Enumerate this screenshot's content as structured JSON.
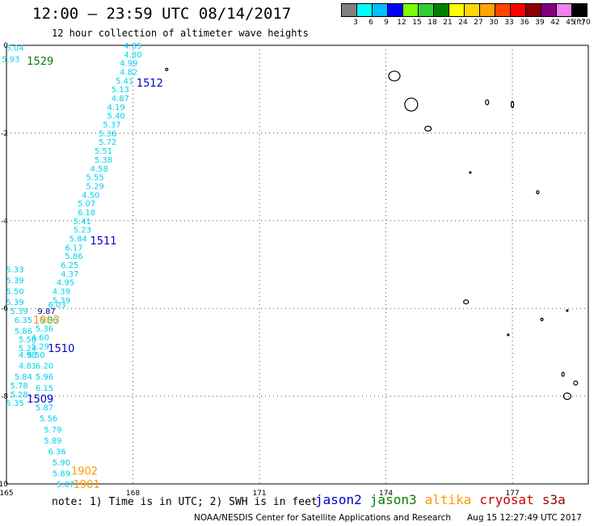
{
  "header": {
    "title": "12:00 – 23:59 UTC 08/14/2017",
    "subtitle": "12 hour collection of altimeter wave heights"
  },
  "colorbar": {
    "labels": [
      "3",
      "6",
      "9",
      "12",
      "15",
      "18",
      "21",
      "24",
      "27",
      "30",
      "33",
      "36",
      "39",
      "42",
      "45",
      "70"
    ],
    "unit": "(ft)",
    "colors": [
      "#808080",
      "#00ffff",
      "#00bfff",
      "#0000ff",
      "#7cfc00",
      "#32cd32",
      "#008000",
      "#ffff00",
      "#ffd700",
      "#ffa500",
      "#ff4500",
      "#ff0000",
      "#8b0000",
      "#800080",
      "#ee82ee",
      "#000000"
    ]
  },
  "chart_data": {
    "type": "scatter",
    "x_ticks": [
      "165",
      "168",
      "171",
      "174",
      "177"
    ],
    "y_ticks": [
      "0",
      "-2",
      "-4",
      "-6",
      "-8",
      "-10"
    ],
    "xlim": [
      165,
      178.8
    ],
    "ylim": [
      -10,
      0
    ],
    "grid": true,
    "pass_labels": [
      {
        "text": "1529",
        "lon": 165.8,
        "lat": -0.35,
        "color": "#008000"
      },
      {
        "text": "1512",
        "lon": 168.4,
        "lat": -0.85,
        "color": "#0000cc"
      },
      {
        "text": "1511",
        "lon": 167.3,
        "lat": -4.45,
        "color": "#0000cc"
      },
      {
        "text": "1903",
        "lon": 165.95,
        "lat": -6.25,
        "color": "#ff9900"
      },
      {
        "text": "1510",
        "lon": 166.3,
        "lat": -6.9,
        "color": "#0000cc"
      },
      {
        "text": "1509",
        "lon": 165.8,
        "lat": -8.05,
        "color": "#0000cc"
      },
      {
        "text": "1902",
        "lon": 166.85,
        "lat": -9.7,
        "color": "#ff9900"
      },
      {
        "text": "1901",
        "lon": 166.9,
        "lat": -10.0,
        "color": "#ff9900"
      }
    ],
    "series": [
      {
        "color": "#00d0f0",
        "points": [
          {
            "lon": 165.2,
            "lat": -0.05,
            "v": "5.04"
          },
          {
            "lon": 165.1,
            "lat": -0.3,
            "v": "5.93"
          },
          {
            "lon": 168.0,
            "lat": 0.0,
            "v": "4.85"
          },
          {
            "lon": 168.0,
            "lat": -0.2,
            "v": "4.80"
          },
          {
            "lon": 167.9,
            "lat": -0.4,
            "v": "4.99"
          },
          {
            "lon": 167.9,
            "lat": -0.6,
            "v": "4.82"
          },
          {
            "lon": 167.8,
            "lat": -0.8,
            "v": "5.41"
          },
          {
            "lon": 167.7,
            "lat": -1.0,
            "v": "5.13"
          },
          {
            "lon": 167.7,
            "lat": -1.2,
            "v": "4.87"
          },
          {
            "lon": 167.6,
            "lat": -1.4,
            "v": "4.19"
          },
          {
            "lon": 167.6,
            "lat": -1.6,
            "v": "5.40"
          },
          {
            "lon": 167.5,
            "lat": -1.8,
            "v": "5.37"
          },
          {
            "lon": 167.4,
            "lat": -2.0,
            "v": "5.36"
          },
          {
            "lon": 167.4,
            "lat": -2.2,
            "v": "5.72"
          },
          {
            "lon": 167.3,
            "lat": -2.4,
            "v": "5.51"
          },
          {
            "lon": 167.3,
            "lat": -2.6,
            "v": "5.38"
          },
          {
            "lon": 167.2,
            "lat": -2.8,
            "v": "4.58"
          },
          {
            "lon": 167.1,
            "lat": -3.0,
            "v": "5.55"
          },
          {
            "lon": 167.1,
            "lat": -3.2,
            "v": "5.29"
          },
          {
            "lon": 167.0,
            "lat": -3.4,
            "v": "4.50"
          },
          {
            "lon": 166.9,
            "lat": -3.6,
            "v": "5.07"
          },
          {
            "lon": 166.9,
            "lat": -3.8,
            "v": "6.18"
          },
          {
            "lon": 166.8,
            "lat": -4.0,
            "v": "5.41"
          },
          {
            "lon": 166.8,
            "lat": -4.2,
            "v": "5.23"
          },
          {
            "lon": 166.7,
            "lat": -4.4,
            "v": "5.84"
          },
          {
            "lon": 166.6,
            "lat": -4.6,
            "v": "6.17"
          },
          {
            "lon": 166.6,
            "lat": -4.8,
            "v": "5.86"
          },
          {
            "lon": 166.5,
            "lat": -5.0,
            "v": "6.25"
          },
          {
            "lon": 166.5,
            "lat": -5.2,
            "v": "4.37"
          },
          {
            "lon": 166.4,
            "lat": -5.4,
            "v": "4.95"
          },
          {
            "lon": 166.3,
            "lat": -5.6,
            "v": "4.39"
          },
          {
            "lon": 166.3,
            "lat": -5.8,
            "v": "5.39"
          },
          {
            "lon": 166.2,
            "lat": -5.9,
            "v": "6.03"
          },
          {
            "lon": 165.2,
            "lat": -5.1,
            "v": "5.33"
          },
          {
            "lon": 165.2,
            "lat": -5.35,
            "v": "5.39"
          },
          {
            "lon": 165.2,
            "lat": -5.6,
            "v": "5.50"
          },
          {
            "lon": 165.2,
            "lat": -5.85,
            "v": "5.39"
          },
          {
            "lon": 165.3,
            "lat": -6.05,
            "v": "5.39"
          },
          {
            "lon": 165.4,
            "lat": -6.25,
            "v": "6.35"
          },
          {
            "lon": 166.0,
            "lat": -6.25,
            "v": "6.86"
          },
          {
            "lon": 165.4,
            "lat": -6.5,
            "v": "5.86"
          },
          {
            "lon": 165.9,
            "lat": -6.45,
            "v": "5.36"
          },
          {
            "lon": 165.5,
            "lat": -6.7,
            "v": "5.50"
          },
          {
            "lon": 165.8,
            "lat": -6.65,
            "v": "4.60"
          },
          {
            "lon": 165.5,
            "lat": -6.9,
            "v": "5.24"
          },
          {
            "lon": 165.8,
            "lat": -6.85,
            "v": "5.29"
          },
          {
            "lon": 165.5,
            "lat": -7.05,
            "v": "4.98"
          },
          {
            "lon": 165.7,
            "lat": -7.05,
            "v": "5.50"
          },
          {
            "lon": 165.5,
            "lat": -7.3,
            "v": "4.81"
          },
          {
            "lon": 165.9,
            "lat": -7.3,
            "v": "6.20"
          },
          {
            "lon": 165.4,
            "lat": -7.55,
            "v": "5.84"
          },
          {
            "lon": 165.9,
            "lat": -7.55,
            "v": "5.96"
          },
          {
            "lon": 165.3,
            "lat": -7.75,
            "v": "5.78"
          },
          {
            "lon": 165.9,
            "lat": -7.8,
            "v": "6.15"
          },
          {
            "lon": 165.3,
            "lat": -7.95,
            "v": "5.28"
          },
          {
            "lon": 165.2,
            "lat": -8.15,
            "v": "5.35"
          },
          {
            "lon": 165.9,
            "lat": -8.25,
            "v": "5.87"
          },
          {
            "lon": 166.0,
            "lat": -8.5,
            "v": "5.56"
          },
          {
            "lon": 166.1,
            "lat": -8.75,
            "v": "5.79"
          },
          {
            "lon": 166.1,
            "lat": -9.0,
            "v": "5.89"
          },
          {
            "lon": 166.2,
            "lat": -9.25,
            "v": "6.36"
          },
          {
            "lon": 166.3,
            "lat": -9.5,
            "v": "5.90"
          },
          {
            "lon": 166.3,
            "lat": -9.75,
            "v": "5.89"
          },
          {
            "lon": 166.4,
            "lat": -10.0,
            "v": "5.07"
          }
        ]
      },
      {
        "color": "#000080",
        "points": [
          {
            "lon": 165.95,
            "lat": -6.05,
            "v": "9.87"
          }
        ]
      }
    ],
    "land": [
      {
        "lon": 168.8,
        "lat": -0.55,
        "w": 3,
        "h": 3
      },
      {
        "lon": 174.2,
        "lat": -0.7,
        "w": 14,
        "h": 12
      },
      {
        "lon": 174.6,
        "lat": -1.35,
        "w": 16,
        "h": 16
      },
      {
        "lon": 175.0,
        "lat": -1.9,
        "w": 8,
        "h": 6
      },
      {
        "lon": 176.4,
        "lat": -1.3,
        "w": 4,
        "h": 6
      },
      {
        "lon": 177.0,
        "lat": -1.35,
        "w": 3,
        "h": 8
      },
      {
        "lon": 176.0,
        "lat": -2.9,
        "w": 2,
        "h": 2
      },
      {
        "lon": 177.6,
        "lat": -3.35,
        "w": 3,
        "h": 4
      },
      {
        "lon": 175.9,
        "lat": -5.85,
        "w": 6,
        "h": 5
      },
      {
        "lon": 177.7,
        "lat": -6.25,
        "w": 3,
        "h": 3
      },
      {
        "lon": 178.3,
        "lat": -6.05,
        "w": 2,
        "h": 2
      },
      {
        "lon": 176.9,
        "lat": -6.6,
        "w": 2,
        "h": 2
      },
      {
        "lon": 178.2,
        "lat": -7.5,
        "w": 3,
        "h": 5
      },
      {
        "lon": 178.5,
        "lat": -7.7,
        "w": 5,
        "h": 5
      },
      {
        "lon": 178.3,
        "lat": -8.0,
        "w": 9,
        "h": 8
      }
    ]
  },
  "footer": {
    "note": "note:  1) Time is in UTC;  2) SWH is in feet",
    "legend": [
      {
        "name": "jason2",
        "color": "#0000cc"
      },
      {
        "name": "jason3",
        "color": "#008000"
      },
      {
        "name": "altika",
        "color": "#ff9900"
      },
      {
        "name": "cryosat",
        "color": "#cc0000"
      },
      {
        "name": "s3a",
        "color": "#990000"
      }
    ],
    "credit": "NOAA/NESDIS Center for Satellite Applications and Research",
    "timestamp": "Aug 15 12:27:49 UTC 2017"
  }
}
